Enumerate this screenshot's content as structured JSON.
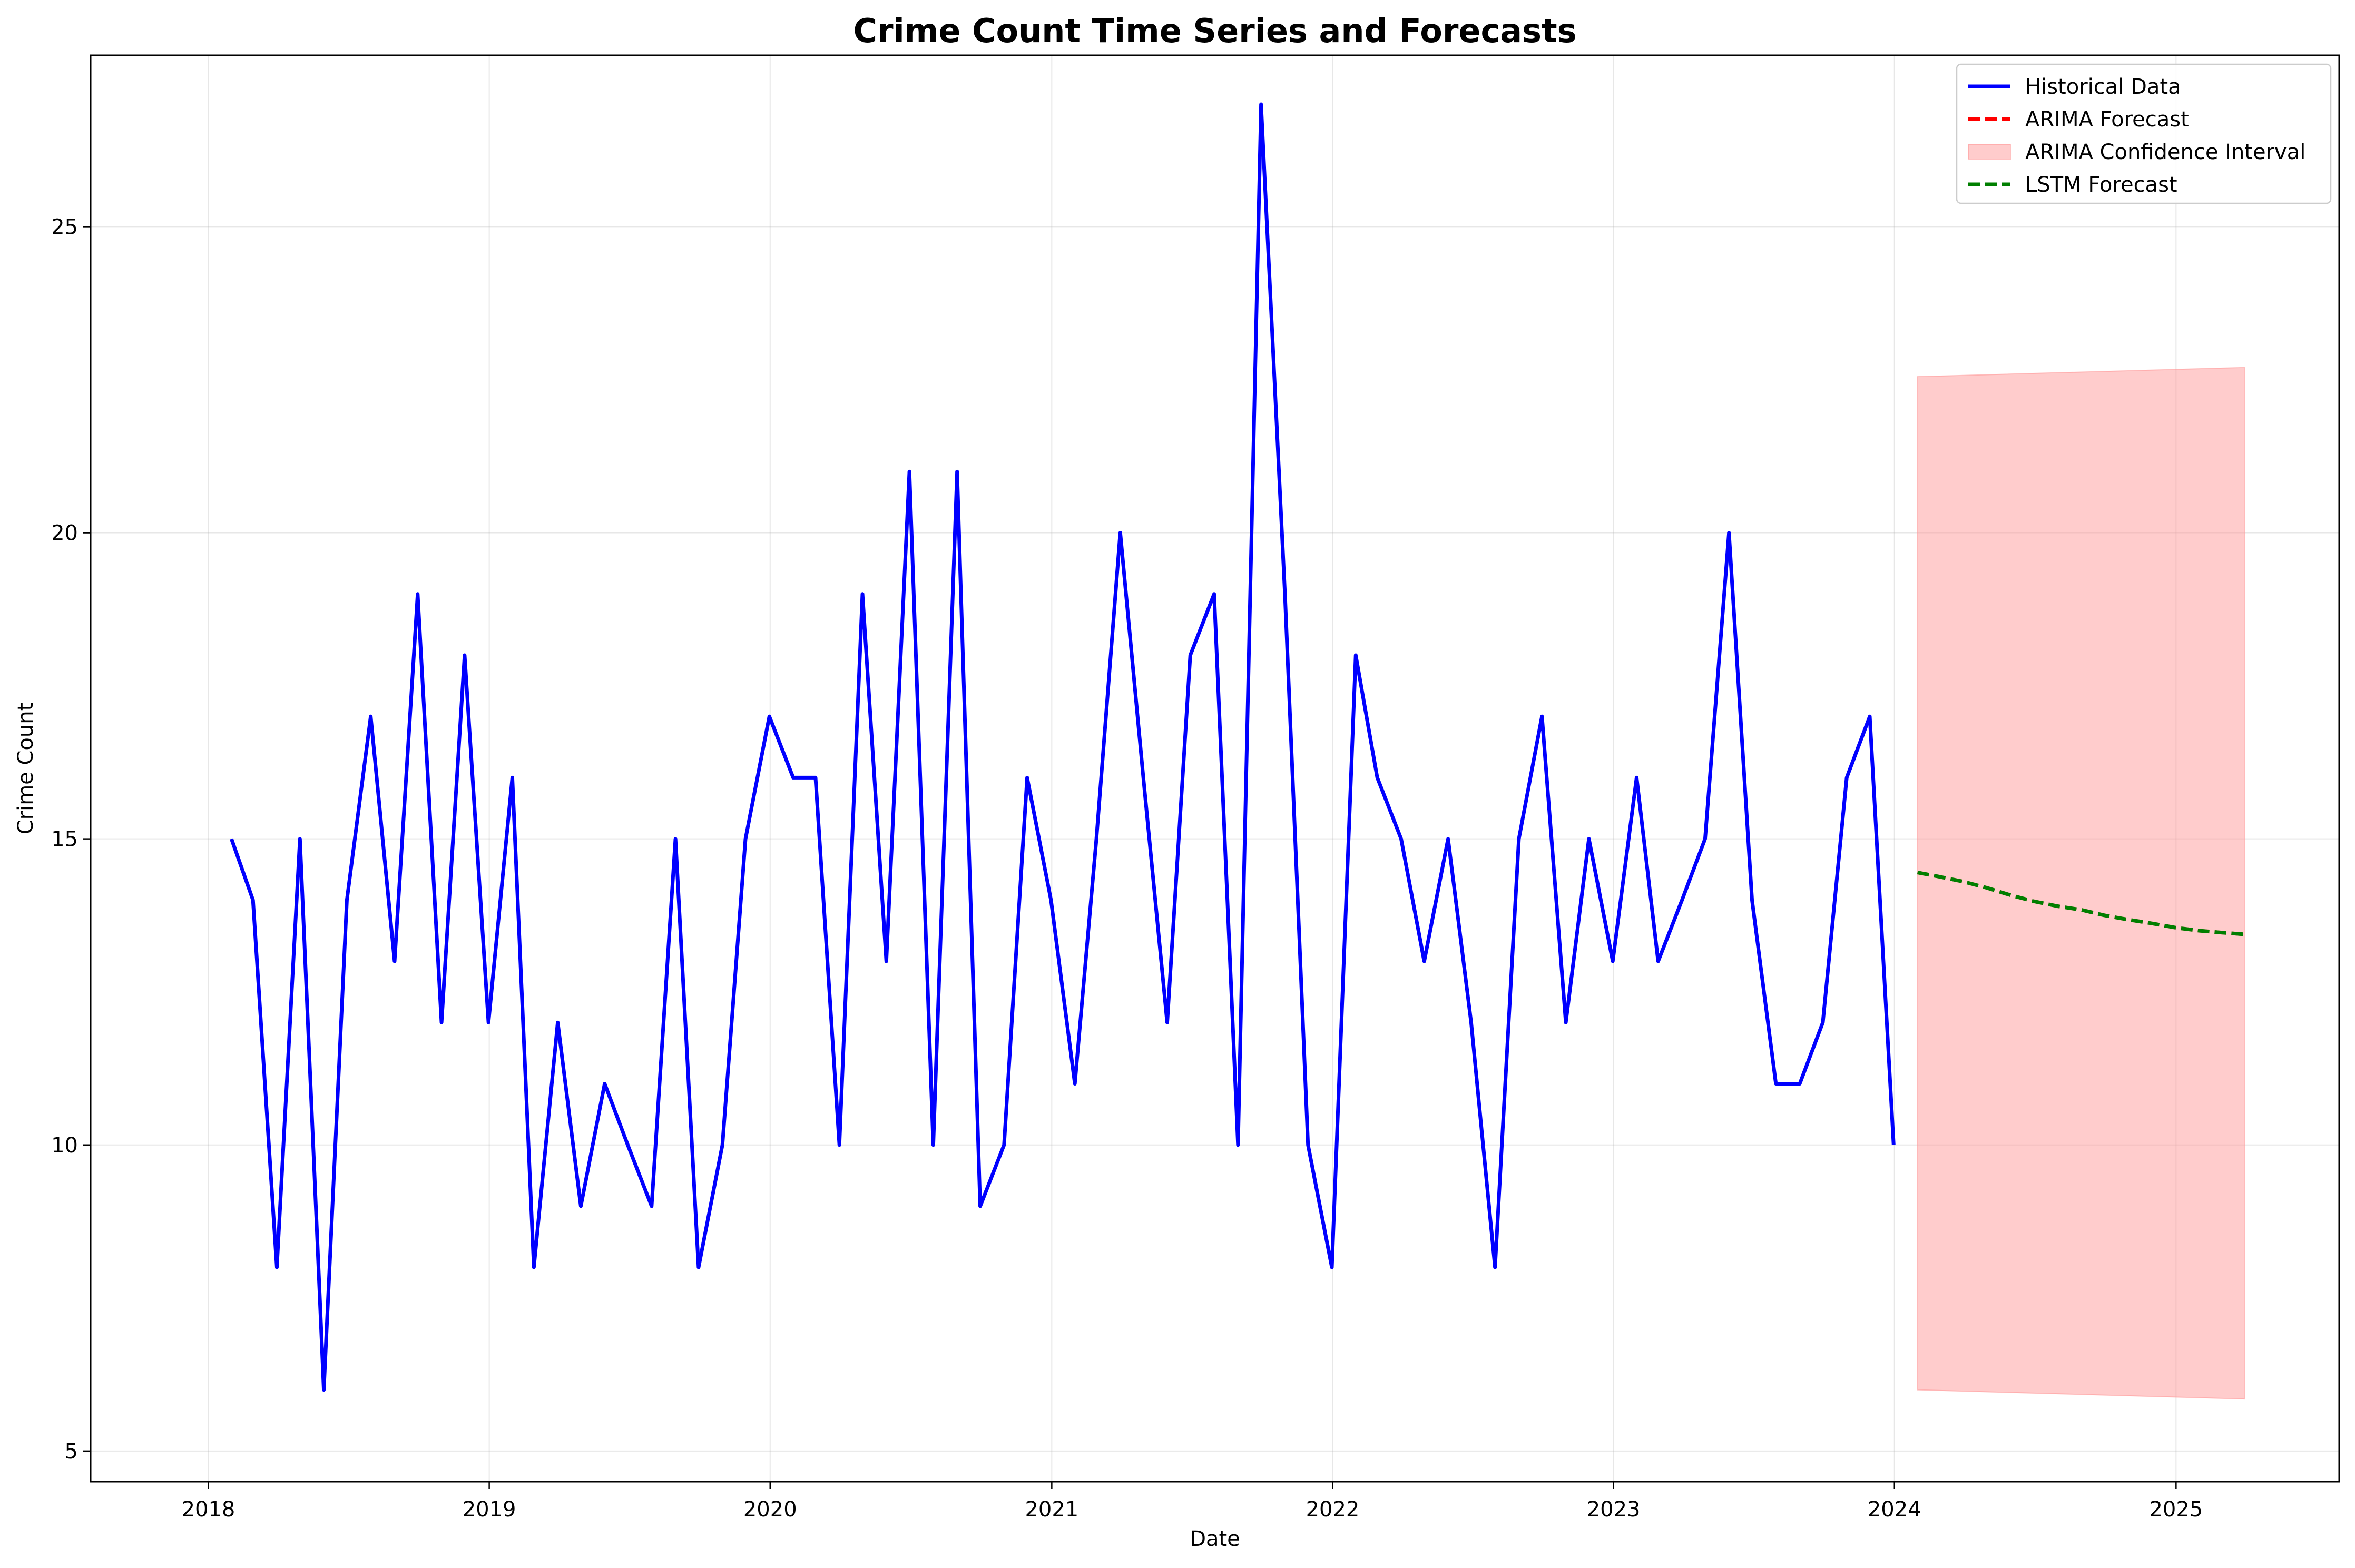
{
  "chart_data": {
    "type": "line",
    "title": "Crime Count Time Series and Forecasts",
    "xlabel": "Date",
    "ylabel": "Crime Count",
    "xlim": [
      "2017-08-01",
      "2025-08-01"
    ],
    "ylim": [
      4.5,
      27.8
    ],
    "x_ticks": [
      {
        "label": "2018",
        "date": "2018-01-01"
      },
      {
        "label": "2019",
        "date": "2019-01-01"
      },
      {
        "label": "2020",
        "date": "2020-01-01"
      },
      {
        "label": "2021",
        "date": "2021-01-01"
      },
      {
        "label": "2022",
        "date": "2022-01-01"
      },
      {
        "label": "2023",
        "date": "2023-01-01"
      },
      {
        "label": "2024",
        "date": "2024-01-01"
      },
      {
        "label": "2025",
        "date": "2025-01-01"
      }
    ],
    "y_ticks": [
      {
        "label": "5",
        "value": 5
      },
      {
        "label": "10",
        "value": 10
      },
      {
        "label": "15",
        "value": 15
      },
      {
        "label": "20",
        "value": 20
      },
      {
        "label": "25",
        "value": 25
      }
    ],
    "grid": true,
    "legend_position": "top-right",
    "series": [
      {
        "name": "Historical Data",
        "color": "#0000ff",
        "style": "solid",
        "x": [
          "2018-01-31",
          "2018-02-28",
          "2018-03-31",
          "2018-04-30",
          "2018-05-31",
          "2018-06-30",
          "2018-07-31",
          "2018-08-31",
          "2018-09-30",
          "2018-10-31",
          "2018-11-30",
          "2018-12-31",
          "2019-01-31",
          "2019-02-28",
          "2019-03-31",
          "2019-04-30",
          "2019-05-31",
          "2019-06-30",
          "2019-07-31",
          "2019-08-31",
          "2019-09-30",
          "2019-10-31",
          "2019-11-30",
          "2019-12-31",
          "2020-01-31",
          "2020-02-29",
          "2020-03-31",
          "2020-04-30",
          "2020-05-31",
          "2020-06-30",
          "2020-07-31",
          "2020-08-31",
          "2020-09-30",
          "2020-10-31",
          "2020-11-30",
          "2020-12-31",
          "2021-01-31",
          "2021-02-28",
          "2021-03-31",
          "2021-04-30",
          "2021-05-31",
          "2021-06-30",
          "2021-07-31",
          "2021-08-31",
          "2021-09-30",
          "2021-10-31",
          "2021-11-30",
          "2021-12-31",
          "2022-01-31",
          "2022-02-28",
          "2022-03-31",
          "2022-04-30",
          "2022-05-31",
          "2022-06-30",
          "2022-07-31",
          "2022-08-31",
          "2022-09-30",
          "2022-10-31",
          "2022-11-30",
          "2022-12-31",
          "2023-01-31",
          "2023-02-28",
          "2023-03-31",
          "2023-04-30",
          "2023-05-31",
          "2023-06-30",
          "2023-07-31",
          "2023-08-31",
          "2023-09-30",
          "2023-10-31",
          "2023-11-30",
          "2023-12-31"
        ],
        "values": [
          15,
          14,
          8,
          15,
          6,
          14,
          17,
          13,
          19,
          12,
          18,
          12,
          16,
          8,
          12,
          9,
          11,
          10,
          9,
          15,
          8,
          10,
          15,
          17,
          16,
          16,
          10,
          19,
          13,
          21,
          10,
          21,
          9,
          10,
          16,
          14,
          11,
          15,
          20,
          16,
          12,
          18,
          19,
          10,
          27,
          19,
          10,
          8,
          18,
          16,
          15,
          13,
          15,
          12,
          8,
          15,
          17,
          12,
          15,
          13,
          16,
          13,
          14,
          15,
          20,
          14,
          11,
          11,
          12,
          16,
          17,
          10
        ]
      },
      {
        "name": "ARIMA Forecast",
        "color": "#ff0000",
        "style": "dashed",
        "x": [
          "2024-01-31",
          "2024-02-29",
          "2024-03-31",
          "2024-04-30",
          "2024-05-31",
          "2024-06-30",
          "2024-07-31",
          "2024-08-31",
          "2024-09-30",
          "2024-10-31",
          "2024-11-30",
          "2024-12-31",
          "2025-01-31",
          "2025-02-28",
          "2025-03-31"
        ],
        "values": [
          14.45,
          14.38,
          14.3,
          14.2,
          14.08,
          13.98,
          13.9,
          13.84,
          13.75,
          13.68,
          13.62,
          13.55,
          13.5,
          13.47,
          13.44
        ]
      },
      {
        "name": "ARIMA Confidence Interval",
        "color": "#ff9999",
        "style": "band",
        "x": [
          "2024-01-31",
          "2025-03-31"
        ],
        "lower": [
          6.0,
          5.85
        ],
        "upper": [
          22.55,
          22.7
        ]
      },
      {
        "name": "LSTM Forecast",
        "color": "#007f00",
        "style": "dashed",
        "x": [
          "2024-01-31",
          "2024-02-29",
          "2024-03-31",
          "2024-04-30",
          "2024-05-31",
          "2024-06-30",
          "2024-07-31",
          "2024-08-31",
          "2024-09-30",
          "2024-10-31",
          "2024-11-30",
          "2024-12-31",
          "2025-01-31",
          "2025-02-28",
          "2025-03-31"
        ],
        "values": [
          14.45,
          14.38,
          14.3,
          14.2,
          14.08,
          13.98,
          13.9,
          13.84,
          13.75,
          13.68,
          13.62,
          13.55,
          13.5,
          13.47,
          13.44
        ]
      }
    ]
  }
}
